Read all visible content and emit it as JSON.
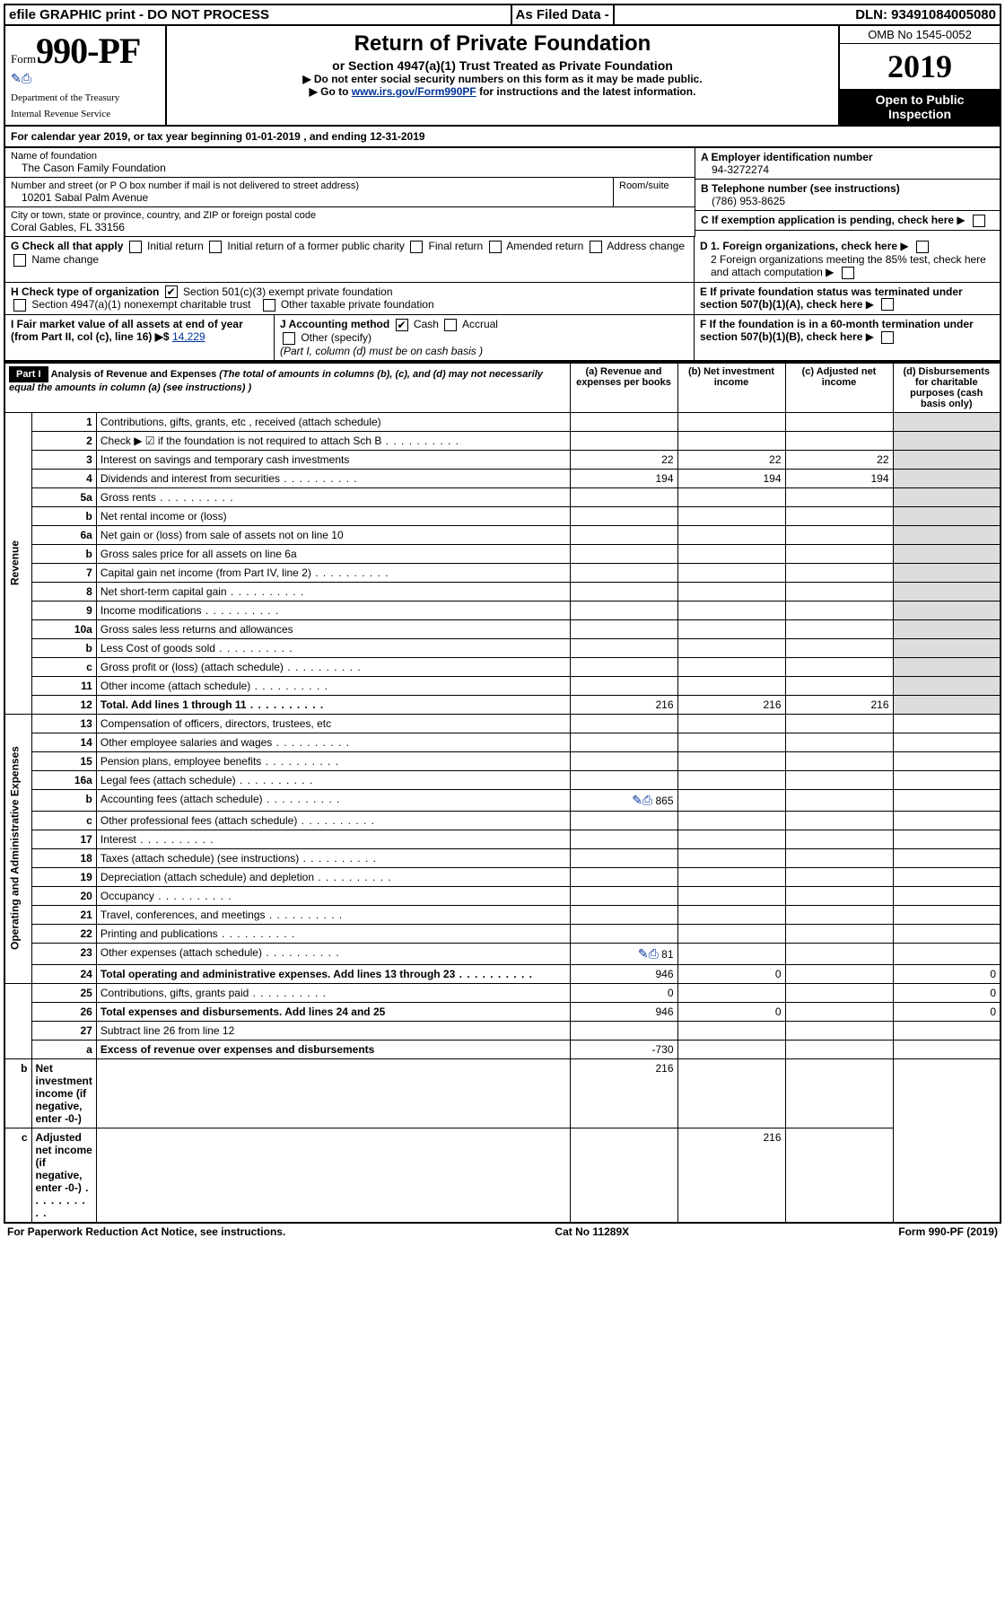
{
  "topbar": {
    "left": "efile GRAPHIC print - DO NOT PROCESS",
    "mid": "As Filed Data -",
    "right": "DLN: 93491084005080"
  },
  "header": {
    "form_prefix": "Form",
    "form_number": "990-PF",
    "dept1": "Department of the Treasury",
    "dept2": "Internal Revenue Service",
    "title": "Return of Private Foundation",
    "subtitle": "or Section 4947(a)(1) Trust Treated as Private Foundation",
    "note1": "▶ Do not enter social security numbers on this form as it may be made public.",
    "note2_pre": "▶ Go to ",
    "note2_link": "www.irs.gov/Form990PF",
    "note2_post": " for instructions and the latest information.",
    "omb": "OMB No 1545-0052",
    "year": "2019",
    "open": "Open to Public Inspection"
  },
  "cal": {
    "prefix": "For calendar year 2019, or tax year beginning ",
    "begin": "01-01-2019",
    "mid": " , and ending ",
    "end": "12-31-2019"
  },
  "info": {
    "name_lbl": "Name of foundation",
    "name_val": "The Cason Family Foundation",
    "a_lbl": "A Employer identification number",
    "ein": "94-3272274",
    "addr_lbl": "Number and street (or P O  box number if mail is not delivered to street address)",
    "room_lbl": "Room/suite",
    "addr_val": "10201 Sabal Palm Avenue",
    "b_lbl": "B Telephone number (see instructions)",
    "phone": "(786) 953-8625",
    "city_lbl": "City or town, state or province, country, and ZIP or foreign postal code",
    "city_val": "Coral Gables, FL  33156",
    "c_lbl": "C If exemption application is pending, check here",
    "g_lbl": "G Check all that apply",
    "g_opts": [
      "Initial return",
      "Initial return of a former public charity",
      "Final return",
      "Amended return",
      "Address change",
      "Name change"
    ],
    "d1": "D 1. Foreign organizations, check here",
    "d2": "2 Foreign organizations meeting the 85% test, check here and attach computation",
    "e_lbl": "E  If private foundation status was terminated under section 507(b)(1)(A), check here",
    "h_lbl": "H Check type of organization",
    "h1": "Section 501(c)(3) exempt private foundation",
    "h2": "Section 4947(a)(1) nonexempt charitable trust",
    "h3": "Other taxable private foundation",
    "i_lbl": "I Fair market value of all assets at end of year (from Part II, col  (c), line 16) ▶$ ",
    "i_val": "14,229",
    "j_lbl": "J Accounting method",
    "j_cash": "Cash",
    "j_accrual": "Accrual",
    "j_other": "Other (specify)",
    "j_note": "(Part I, column (d) must be on cash basis )",
    "f_lbl": "F  If the foundation is in a 60-month termination under section 507(b)(1)(B), check here"
  },
  "part1": {
    "label": "Part I",
    "title": "Analysis of Revenue and Expenses",
    "subtitle": "(The total of amounts in columns (b), (c), and (d) may not necessarily equal the amounts in column (a) (see instructions) )",
    "col_a": "(a) Revenue and expenses per books",
    "col_b": "(b) Net investment income",
    "col_c": "(c) Adjusted net income",
    "col_d": "(d) Disbursements for charitable purposes (cash basis only)"
  },
  "section_labels": {
    "rev": "Revenue",
    "exp": "Operating and Administrative Expenses"
  },
  "rows": [
    {
      "n": "1",
      "d": "Contributions, gifts, grants, etc , received (attach schedule)"
    },
    {
      "n": "2",
      "d": "Check ▶ ☑ if the foundation is not required to attach Sch B",
      "dots": true,
      "bold_not": true
    },
    {
      "n": "3",
      "d": "Interest on savings and temporary cash investments",
      "a": "22",
      "b": "22",
      "c": "22"
    },
    {
      "n": "4",
      "d": "Dividends and interest from securities",
      "dots": true,
      "a": "194",
      "b": "194",
      "c": "194"
    },
    {
      "n": "5a",
      "d": "Gross rents",
      "dots": true
    },
    {
      "n": "b",
      "d": "Net rental income or (loss)"
    },
    {
      "n": "6a",
      "d": "Net gain or (loss) from sale of assets not on line 10"
    },
    {
      "n": "b",
      "d": "Gross sales price for all assets on line 6a"
    },
    {
      "n": "7",
      "d": "Capital gain net income (from Part IV, line 2)",
      "dots": true
    },
    {
      "n": "8",
      "d": "Net short-term capital gain",
      "dots": true
    },
    {
      "n": "9",
      "d": "Income modifications",
      "dots": true
    },
    {
      "n": "10a",
      "d": "Gross sales less returns and allowances"
    },
    {
      "n": "b",
      "d": "Less  Cost of goods sold",
      "dots": true
    },
    {
      "n": "c",
      "d": "Gross profit or (loss) (attach schedule)",
      "dots": true
    },
    {
      "n": "11",
      "d": "Other income (attach schedule)",
      "dots": true
    },
    {
      "n": "12",
      "d": "Total. Add lines 1 through 11",
      "dots": true,
      "bold": true,
      "a": "216",
      "b": "216",
      "c": "216"
    },
    {
      "n": "13",
      "d": "Compensation of officers, directors, trustees, etc"
    },
    {
      "n": "14",
      "d": "Other employee salaries and wages",
      "dots": true
    },
    {
      "n": "15",
      "d": "Pension plans, employee benefits",
      "dots": true
    },
    {
      "n": "16a",
      "d": "Legal fees (attach schedule)",
      "dots": true
    },
    {
      "n": "b",
      "d": "Accounting fees (attach schedule)",
      "dots": true,
      "a": "865",
      "icon": true
    },
    {
      "n": "c",
      "d": "Other professional fees (attach schedule)",
      "dots": true
    },
    {
      "n": "17",
      "d": "Interest",
      "dots": true
    },
    {
      "n": "18",
      "d": "Taxes (attach schedule) (see instructions)",
      "dots": true
    },
    {
      "n": "19",
      "d": "Depreciation (attach schedule) and depletion",
      "dots": true
    },
    {
      "n": "20",
      "d": "Occupancy",
      "dots": true
    },
    {
      "n": "21",
      "d": "Travel, conferences, and meetings",
      "dots": true
    },
    {
      "n": "22",
      "d": "Printing and publications",
      "dots": true
    },
    {
      "n": "23",
      "d": "Other expenses (attach schedule)",
      "dots": true,
      "a": "81",
      "icon": true
    },
    {
      "n": "24",
      "d": "Total operating and administrative expenses. Add lines 13 through 23",
      "dots": true,
      "bold": true,
      "a": "946",
      "b": "0",
      "dd": "0"
    },
    {
      "n": "25",
      "d": "Contributions, gifts, grants paid",
      "dots": true,
      "a": "0",
      "dd": "0"
    },
    {
      "n": "26",
      "d": "Total expenses and disbursements. Add lines 24 and 25",
      "bold": true,
      "a": "946",
      "b": "0",
      "dd": "0"
    },
    {
      "n": "27",
      "d": "Subtract line 26 from line 12"
    },
    {
      "n": "a",
      "d": "Excess of revenue over expenses and disbursements",
      "bold": true,
      "a": "-730"
    },
    {
      "n": "b",
      "d": "Net investment income (if negative, enter -0-)",
      "bold": true,
      "b": "216"
    },
    {
      "n": "c",
      "d": "Adjusted net income (if negative, enter -0-)",
      "dots": true,
      "bold": true,
      "c": "216"
    }
  ],
  "footer": {
    "left": "For Paperwork Reduction Act Notice, see instructions.",
    "mid": "Cat No  11289X",
    "right": "Form 990-PF (2019)"
  }
}
